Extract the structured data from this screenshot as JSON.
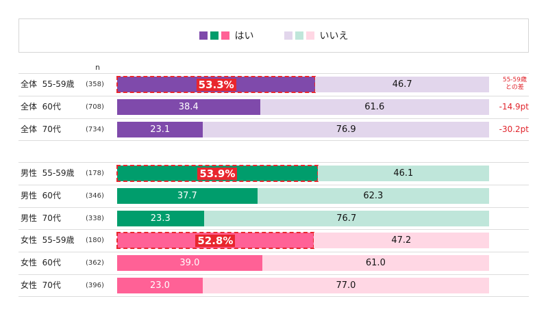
{
  "legend": {
    "yes_label": "はい",
    "no_label": "いいえ",
    "yes_colors": [
      "#7f4aab",
      "#009d6c",
      "#ff6196"
    ],
    "no_colors": [
      "#e2d6ec",
      "#bfe6da",
      "#ffd7e4"
    ]
  },
  "n_header": "n",
  "diff_header_line1": "55-59歳",
  "diff_header_line2": "との差",
  "chart_data": {
    "type": "bar",
    "stacked": true,
    "orientation": "horizontal",
    "xlim": [
      0,
      100
    ],
    "categories": [
      "全体 55-59歳",
      "全体 60代",
      "全体 70代",
      "男性 55-59歳",
      "男性 60代",
      "男性 70代",
      "女性 55-59歳",
      "女性 60代",
      "女性 70代"
    ],
    "series": [
      {
        "name": "はい",
        "values": [
          53.3,
          38.4,
          23.1,
          53.9,
          37.7,
          23.3,
          52.8,
          39.0,
          23.0
        ]
      },
      {
        "name": "いいえ",
        "values": [
          46.7,
          61.6,
          76.9,
          46.1,
          62.3,
          76.7,
          47.2,
          61.0,
          77.0
        ]
      }
    ],
    "rows": [
      {
        "label": "全体  55-59歳",
        "n": "(358)",
        "yes": "53.3%",
        "no": "46.7",
        "group": 0,
        "highlight": true,
        "diff": ""
      },
      {
        "label": "全体  60代",
        "n": "(708)",
        "yes": "38.4",
        "no": "61.6",
        "group": 0,
        "highlight": false,
        "diff": "-14.9pt"
      },
      {
        "label": "全体  70代",
        "n": "(734)",
        "yes": "23.1",
        "no": "76.9",
        "group": 0,
        "highlight": false,
        "diff": "-30.2pt"
      },
      {
        "label": "男性  55-59歳",
        "n": "(178)",
        "yes": "53.9%",
        "no": "46.1",
        "group": 1,
        "highlight": true,
        "diff": ""
      },
      {
        "label": "男性  60代",
        "n": "(346)",
        "yes": "37.7",
        "no": "62.3",
        "group": 1,
        "highlight": false,
        "diff": ""
      },
      {
        "label": "男性  70代",
        "n": "(338)",
        "yes": "23.3",
        "no": "76.7",
        "group": 1,
        "highlight": false,
        "diff": ""
      },
      {
        "label": "女性  55-59歳",
        "n": "(180)",
        "yes": "52.8%",
        "no": "47.2",
        "group": 2,
        "highlight": true,
        "diff": ""
      },
      {
        "label": "女性  60代",
        "n": "(362)",
        "yes": "39.0",
        "no": "61.0",
        "group": 2,
        "highlight": false,
        "diff": ""
      },
      {
        "label": "女性  70代",
        "n": "(396)",
        "yes": "23.0",
        "no": "77.0",
        "group": 2,
        "highlight": false,
        "diff": ""
      }
    ]
  }
}
